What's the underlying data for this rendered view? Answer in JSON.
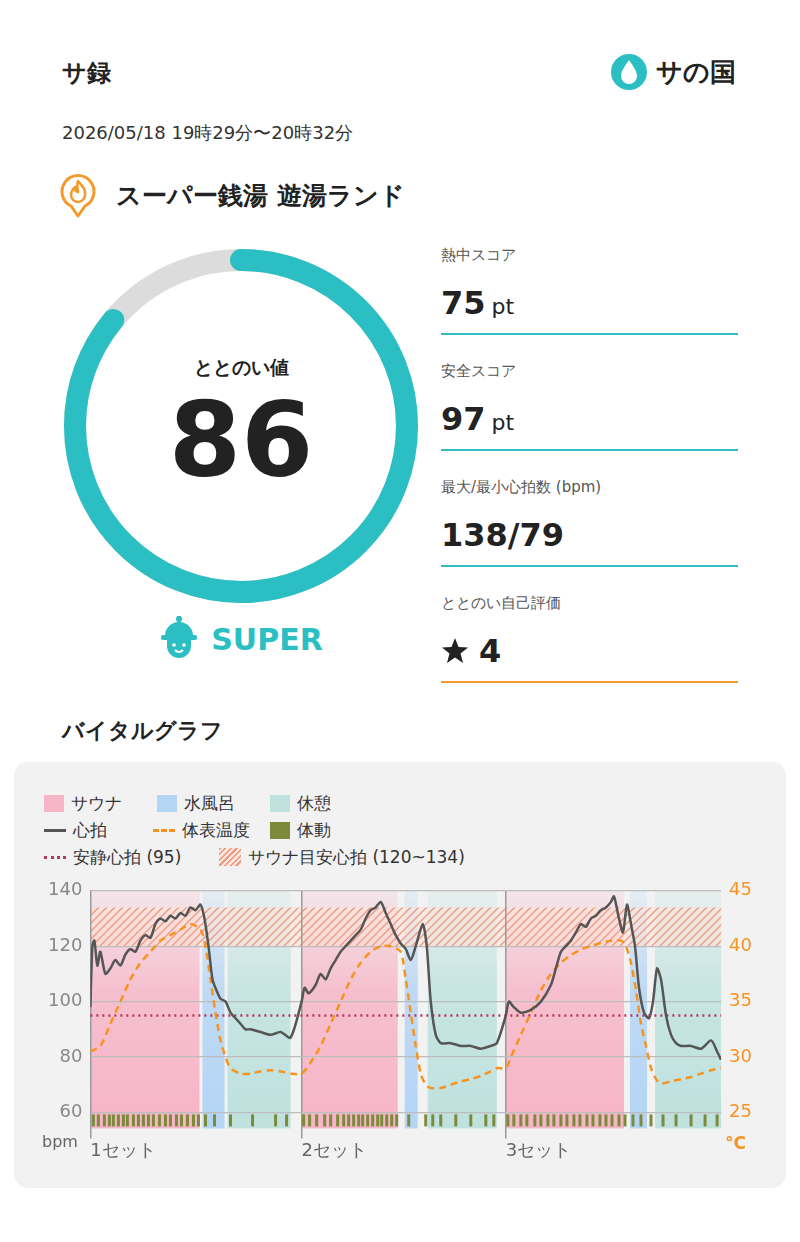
{
  "header": {
    "title": "サ録",
    "brand": "サの国",
    "datetime": "2026/05/18 19時29分〜20時32分",
    "facility": "スーパー銭湯 遊湯ランド"
  },
  "gauge": {
    "label": "ととのい値",
    "value": 86,
    "range": [
      0,
      100
    ],
    "rank": "SUPER",
    "color": "#2bbfc4"
  },
  "stats": [
    {
      "label": "熱中スコア",
      "value": 75,
      "unit": "pt"
    },
    {
      "label": "安全スコア",
      "value": 97,
      "unit": "pt"
    },
    {
      "label": "最大/最小心拍数 (bpm)",
      "text": "138/79"
    },
    {
      "label": "ととのい自己評価",
      "rating": 4
    }
  ],
  "chart_data": {
    "type": "line",
    "title": "バイタルグラフ",
    "legend": "top",
    "grid": true,
    "xlim": [
      0,
      63
    ],
    "xticks": [
      {
        "value": 0,
        "label": "1セット"
      },
      {
        "value": 21.1,
        "label": "2セット"
      },
      {
        "value": 41.5,
        "label": "3セット"
      }
    ],
    "ylim": [
      60,
      140
    ],
    "yticks": [
      60,
      80,
      100,
      120,
      140
    ],
    "y_label": "bpm",
    "y2lim": [
      25,
      45
    ],
    "y2ticks": [
      25,
      30,
      35,
      40,
      45
    ],
    "y2_label": "°C",
    "phase_legend": [
      {
        "name": "サウナ",
        "color": "#f6b6c8"
      },
      {
        "name": "水風呂",
        "color": "#b5d5f5"
      },
      {
        "name": "休憩",
        "color": "#bfe2df"
      }
    ],
    "phases": [
      {
        "phase": "サウナ",
        "start": 0,
        "end": 10.9
      },
      {
        "phase": "水風呂",
        "start": 11.2,
        "end": 13.4
      },
      {
        "phase": "休憩",
        "start": 13.7,
        "end": 20.0
      },
      {
        "phase": "サウナ",
        "start": 21.1,
        "end": 30.7
      },
      {
        "phase": "水風呂",
        "start": 31.4,
        "end": 32.7
      },
      {
        "phase": "休憩",
        "start": 33.7,
        "end": 40.6
      },
      {
        "phase": "サウナ",
        "start": 41.5,
        "end": 53.3
      },
      {
        "phase": "水風呂",
        "start": 53.9,
        "end": 55.6
      },
      {
        "phase": "休憩",
        "start": 56.4,
        "end": 63
      }
    ],
    "series": [
      {
        "name": "心拍",
        "color": "#555555",
        "line_style": "solid",
        "axis": "y",
        "x": [
          0,
          0.2,
          0.4,
          0.7,
          1.0,
          1.5,
          2,
          2.5,
          3,
          3.5,
          4,
          4.5,
          5,
          5.5,
          6,
          6.5,
          7,
          7.5,
          8,
          8.5,
          9,
          9.5,
          10,
          10.5,
          11,
          11.4,
          11.8,
          12.2,
          12.6,
          13,
          13.5,
          14,
          14.5,
          15,
          15.5,
          16,
          17,
          18,
          19,
          20,
          21.1,
          21.4,
          21.8,
          22.5,
          23,
          23.5,
          24,
          24.5,
          25,
          25.5,
          26,
          26.5,
          27,
          27.5,
          28,
          28.5,
          29,
          29.5,
          30,
          30.5,
          31,
          31.5,
          32,
          32.5,
          33.2,
          33.6,
          34,
          34.5,
          35,
          36,
          37,
          38,
          39,
          40,
          40.6,
          41.5,
          41.8,
          42.3,
          43,
          44,
          45,
          46,
          46.5,
          47,
          47.5,
          48,
          48.5,
          49,
          49.5,
          50,
          50.5,
          51,
          51.5,
          52,
          52.3,
          52.8,
          53.2,
          53.6,
          54,
          54.4,
          54.8,
          55.3,
          55.8,
          56.2,
          56.6,
          57,
          57.5,
          58,
          58.5,
          59,
          60,
          61,
          62,
          62.6,
          63
        ],
        "values": [
          98,
          120,
          122,
          113,
          118,
          110,
          112,
          115,
          113,
          117,
          119,
          118,
          122,
          124,
          123,
          128,
          130,
          129,
          131,
          130,
          132,
          131,
          134,
          133,
          135,
          130,
          120,
          108,
          104,
          101,
          100,
          96,
          94,
          92,
          90,
          90,
          89,
          88,
          89,
          87,
          100,
          105,
          103,
          106,
          110,
          108,
          112,
          115,
          118,
          120,
          122,
          124,
          126,
          130,
          133,
          134,
          136,
          132,
          128,
          124,
          121,
          119,
          115,
          120,
          128,
          120,
          100,
          88,
          85,
          85,
          84,
          84,
          83,
          84,
          85,
          95,
          100,
          98,
          96,
          97,
          100,
          106,
          112,
          118,
          120,
          122,
          125,
          128,
          127,
          130,
          131,
          133,
          134,
          136,
          138,
          130,
          125,
          135,
          128,
          120,
          105,
          96,
          94,
          100,
          112,
          108,
          95,
          88,
          85,
          84,
          84,
          83,
          86,
          82,
          79
        ]
      },
      {
        "name": "体表温度",
        "color": "#f7931e",
        "line_style": "dashed",
        "axis": "y2",
        "x": [
          0,
          1,
          2,
          3,
          4,
          5,
          6,
          7,
          8,
          9,
          10,
          11,
          11.5,
          12,
          12.5,
          13,
          13.5,
          14,
          15,
          16,
          17,
          18,
          19,
          20,
          21.1,
          22,
          23,
          24,
          25,
          26,
          27,
          28,
          29,
          30,
          31,
          31.5,
          32,
          32.5,
          33,
          33.5,
          34,
          35,
          36,
          37,
          38,
          39,
          40,
          40.6,
          41.5,
          42,
          43,
          44,
          45,
          46,
          47,
          48,
          49,
          50,
          51,
          52,
          53,
          53.5,
          54,
          54.5,
          55,
          55.5,
          56,
          56.5,
          57,
          58,
          59,
          60,
          61,
          62,
          63
        ],
        "values": [
          30.5,
          31,
          33,
          35,
          37,
          38.5,
          39.5,
          40.5,
          41,
          41.5,
          42,
          41.5,
          40,
          37,
          34,
          31.5,
          30,
          29,
          28.5,
          28.5,
          28.7,
          28.8,
          28.7,
          28.5,
          28.5,
          29.5,
          31,
          33,
          35,
          37,
          38.5,
          39.5,
          40,
          40,
          39.5,
          37,
          34,
          31,
          28.5,
          27.5,
          27.2,
          27.2,
          27.5,
          27.8,
          28,
          28.3,
          28.7,
          29,
          29,
          30,
          32,
          34,
          36,
          37.5,
          38.5,
          39.2,
          39.7,
          40,
          40.3,
          40.5,
          40.5,
          40,
          38.5,
          36,
          33,
          31,
          29,
          28,
          27.6,
          27.8,
          28,
          28.2,
          28.5,
          28.8,
          29
        ]
      }
    ],
    "body_movement": {
      "name": "体動",
      "color": "#7d8a3c",
      "x": [
        0.3,
        0.8,
        1.4,
        1.9,
        2.3,
        2.8,
        3.3,
        3.7,
        4.3,
        4.8,
        5.3,
        5.8,
        6.3,
        6.9,
        7.5,
        8.0,
        8.6,
        9.1,
        9.7,
        10.3,
        10.8,
        11.5,
        12.4,
        14.0,
        16.2,
        18.5,
        19.6,
        21.3,
        21.9,
        22.6,
        23.4,
        24.0,
        24.7,
        25.3,
        25.8,
        26.3,
        26.8,
        27.2,
        27.7,
        28.2,
        28.7,
        29.1,
        29.6,
        30.1,
        30.6,
        31.8,
        33.5,
        34.2,
        35.0,
        36.5,
        38.0,
        39.5,
        40.3,
        41.7,
        42.3,
        43.0,
        43.6,
        44.4,
        45.0,
        45.7,
        46.3,
        47.0,
        47.6,
        48.3,
        48.9,
        49.6,
        50.2,
        50.9,
        51.5,
        52.1,
        52.8,
        53.4,
        54.2,
        55.0,
        56.0,
        57.2,
        58.5,
        60.0,
        61.4,
        62.6
      ]
    },
    "resting_hr": {
      "name": "安静心拍 (95)",
      "value": 95,
      "color": "#b5375a",
      "line_style": "dotted"
    },
    "target_zone": {
      "name": "サウナ目安心拍 (120~134)",
      "range": [
        120,
        134
      ],
      "color": "#ef9a80"
    }
  }
}
